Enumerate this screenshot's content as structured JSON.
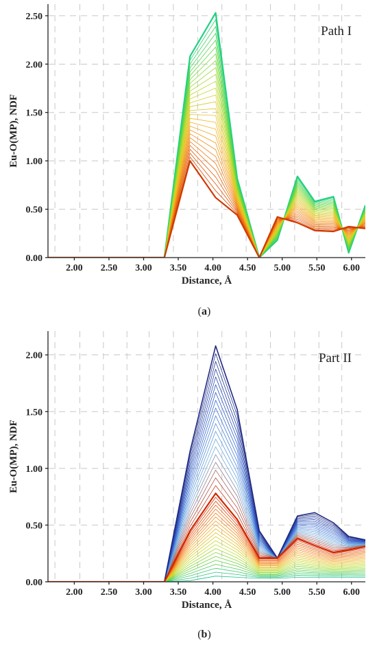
{
  "chart_data": [
    {
      "type": "line",
      "panel_label": "a",
      "annotation": "Path I",
      "xlabel": "Distance, Å",
      "ylabel": "Eu-O(MP), NDF",
      "xlim": [
        1.62,
        6.2
      ],
      "ylim": [
        0,
        2.62
      ],
      "x_ticks": [
        "2.00",
        "2.50",
        "3.00",
        "3.50",
        "4.00",
        "4.50",
        "5.00",
        "5.50",
        "6.00"
      ],
      "y_ticks": [
        "0.00",
        "0.50",
        "1.00",
        "1.50",
        "2.00",
        "2.50"
      ],
      "grid": true,
      "n_curves": 28,
      "color_gradient": [
        "#d03a00",
        "#f07a10",
        "#f2b820",
        "#c6d82a",
        "#6ad83a",
        "#22d080"
      ],
      "x": [
        1.62,
        3.3,
        3.67,
        4.04,
        4.35,
        4.67,
        4.93,
        5.22,
        5.47,
        5.74,
        5.96,
        6.2
      ],
      "series": [
        {
          "values": [
            0,
            0,
            1.0,
            0.62,
            0.44,
            0.0,
            0.42,
            0.36,
            0.28,
            0.27,
            0.32,
            0.3
          ]
        },
        {
          "values": [
            0,
            0,
            2.08,
            2.53,
            0.82,
            0.0,
            0.18,
            0.84,
            0.58,
            0.63,
            0.05,
            0.54
          ]
        }
      ]
    },
    {
      "type": "line",
      "panel_label": "b",
      "annotation": "Part II",
      "xlabel": "Distance, Å",
      "ylabel": "Eu-O(MP), NDF",
      "xlim": [
        1.62,
        6.2
      ],
      "ylim": [
        0,
        2.21
      ],
      "x_ticks": [
        "2.00",
        "2.50",
        "3.00",
        "3.50",
        "4.00",
        "4.50",
        "5.00",
        "5.50",
        "6.00"
      ],
      "y_ticks": [
        "0.00",
        "0.50",
        "1.00",
        "1.50",
        "2.00"
      ],
      "grid": true,
      "n_curves_warm": 22,
      "n_curves_cool": 20,
      "color_gradient": [
        "#1cc090",
        "#60d040",
        "#c0dc20",
        "#f0b020",
        "#f07010",
        "#d02800",
        "#70b0e0",
        "#3060d0",
        "#202880"
      ],
      "x": [
        1.62,
        3.3,
        3.67,
        4.04,
        4.35,
        4.67,
        4.93,
        5.22,
        5.47,
        5.74,
        5.96,
        6.2
      ],
      "series": [
        {
          "values": [
            0,
            0,
            0.01,
            0.05,
            0.04,
            0.03,
            0.03,
            0.04,
            0.04,
            0.04,
            0.04,
            0.04
          ]
        },
        {
          "values": [
            0,
            0,
            0.45,
            0.78,
            0.55,
            0.21,
            0.21,
            0.38,
            0.32,
            0.26,
            0.28,
            0.31
          ]
        },
        {
          "values": [
            0,
            0,
            1.15,
            2.08,
            1.52,
            0.45,
            0.21,
            0.58,
            0.61,
            0.52,
            0.4,
            0.37
          ]
        }
      ]
    }
  ],
  "captions": [
    "a",
    "b"
  ]
}
